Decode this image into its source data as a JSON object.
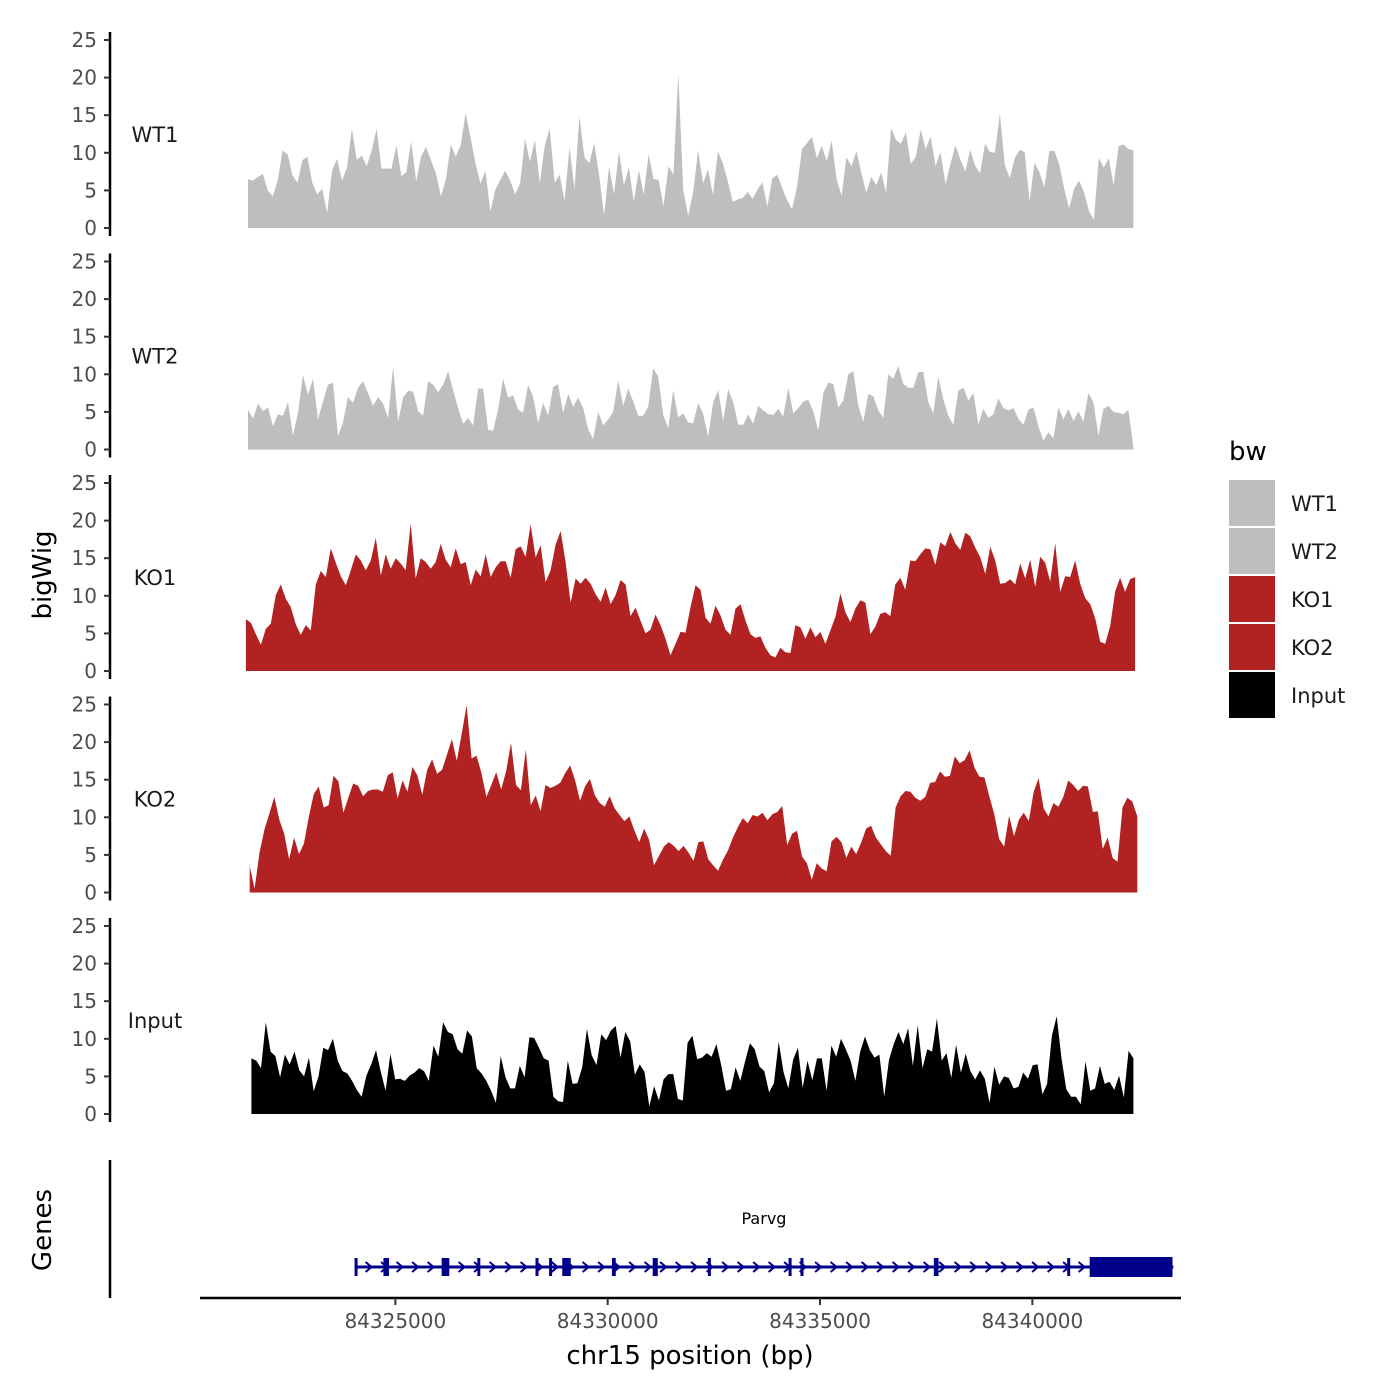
{
  "chart_data": {
    "type": "area",
    "ylabel": "bigWig",
    "xlabel": "chr15 position (bp)",
    "y_ticks": [
      "0",
      "5",
      "10",
      "15",
      "20",
      "25"
    ],
    "ylim": [
      0,
      25
    ],
    "xlim": [
      84320400,
      84343500
    ],
    "x_ticks": [
      {
        "value": 84325000,
        "label": "84325000"
      },
      {
        "value": 84330000,
        "label": "84330000"
      },
      {
        "value": 84335000,
        "label": "84335000"
      },
      {
        "value": 84340000,
        "label": "84340000"
      }
    ],
    "legend": {
      "title": "bw",
      "placement": "right"
    },
    "series": [
      {
        "name": "WT1",
        "color": "#bebebe",
        "x_start": 84321530,
        "x_end": 84342380,
        "values": [
          6.5,
          6.3,
          6.8,
          7.2,
          5,
          4.2,
          6.3,
          10.3,
          9.8,
          7,
          6,
          9,
          9.5,
          6,
          4.5,
          5.2,
          2,
          7.6,
          9.2,
          6.3,
          8,
          13.2,
          9.1,
          9.6,
          8.2,
          10.3,
          13.2,
          7.9,
          7.9,
          7.9,
          11,
          6.9,
          7.4,
          11.5,
          6.2,
          9.5,
          10.8,
          9,
          7.2,
          4.2,
          6.5,
          11.1,
          9.5,
          11,
          15.3,
          12,
          8.6,
          5.9,
          7.6,
          2.2,
          5.1,
          6.4,
          7.6,
          6.3,
          4.5,
          5.9,
          11.9,
          8.8,
          11.7,
          5.9,
          11,
          13.2,
          6,
          7.1,
          3.6,
          10.7,
          5.2,
          14.9,
          9.4,
          8.6,
          11.3,
          6.9,
          1.7,
          8.2,
          4.5,
          10.2,
          5.7,
          8.1,
          3.5,
          7.7,
          4.5,
          9.8,
          6.5,
          6.4,
          2.9,
          8.2,
          7.1,
          20.5,
          5,
          1.6,
          4.8,
          10.3,
          5.9,
          7.8,
          4.4,
          10.2,
          8.6,
          6.2,
          3.5,
          3.8,
          4,
          4.8,
          3.9,
          5.1,
          6.1,
          2.8,
          6.6,
          7.1,
          5.3,
          3.7,
          2.5,
          5.5,
          10.5,
          11.3,
          12.1,
          9.3,
          10.9,
          8.9,
          11.6,
          6.5,
          4.3,
          9.4,
          8.2,
          10.2,
          7.3,
          4.7,
          6.8,
          5.7,
          7.4,
          4.7,
          13.3,
          11.7,
          11.2,
          12.7,
          8.5,
          9.5,
          13.1,
          10.5,
          12.2,
          8.2,
          10.1,
          5.8,
          8.5,
          11,
          9.1,
          7.5,
          10.4,
          8.3,
          7.3,
          11.2,
          10.1,
          10,
          15.2,
          8.4,
          6.6,
          9.3,
          10.4,
          10.1,
          3.5,
          8.7,
          7.4,
          5.4,
          10.2,
          10.3,
          8.5,
          5.2,
          2.6,
          5.2,
          6.3,
          4.8,
          2.3,
          1.1,
          9.3,
          8,
          9.3,
          5.7,
          10.9,
          11.1,
          10.5,
          10.3
        ]
      },
      {
        "name": "WT2",
        "color": "#bebebe",
        "x_start": 84321530,
        "x_end": 84342380,
        "values": [
          5.3,
          4.1,
          6.1,
          5.1,
          5.6,
          3.1,
          4.7,
          4.5,
          6.3,
          1.8,
          4.9,
          9.9,
          7.3,
          9.4,
          4,
          6.4,
          8.6,
          8.9,
          1.8,
          3.6,
          7,
          6.2,
          8.2,
          9.1,
          7.5,
          5.8,
          7,
          6.1,
          4.2,
          11,
          3.7,
          6.9,
          7.8,
          7.7,
          5.1,
          4.5,
          9.1,
          8.6,
          7.6,
          8.6,
          10.4,
          7.9,
          5.5,
          3.4,
          4.2,
          3.2,
          8.1,
          8.1,
          2.6,
          2.5,
          5.3,
          9.4,
          6.9,
          7.2,
          5.3,
          4.9,
          8.6,
          7,
          3.5,
          6.2,
          4.5,
          8.3,
          8.7,
          4.9,
          7.4,
          5.7,
          6.9,
          5.5,
          2.7,
          1.4,
          5,
          3.2,
          4,
          5,
          9.2,
          5.8,
          8.1,
          6.4,
          4.5,
          4.5,
          5.7,
          10.8,
          9.7,
          4.6,
          2.8,
          7.9,
          4.3,
          4.8,
          3.6,
          3.5,
          6.2,
          4.7,
          1.7,
          6.3,
          7.9,
          3.8,
          8,
          6.3,
          3.3,
          3.3,
          4.7,
          3.4,
          5.8,
          5.2,
          4.7,
          4.6,
          5.4,
          4.4,
          8.2,
          4.8,
          5.5,
          6.4,
          6.6,
          5.1,
          2.5,
          7.5,
          8.9,
          8.7,
          5.6,
          6.5,
          10,
          10.4,
          5.8,
          3.7,
          7.4,
          7.1,
          5.2,
          4.2,
          10,
          9.4,
          11.1,
          8.7,
          8.2,
          8.2,
          10.3,
          10.3,
          6.3,
          4.8,
          9.7,
          6.7,
          4.5,
          3.3,
          7.8,
          8.2,
          6.5,
          7.5,
          3.3,
          5.4,
          4.2,
          4.7,
          6.8,
          5.5,
          5.2,
          5.5,
          4.1,
          3.3,
          5.3,
          5.6,
          3.1,
          1.2,
          2.3,
          1.5,
          5.6,
          4,
          5.4,
          3.8,
          5.1,
          3.7,
          7.5,
          6.3,
          1.8,
          5.4,
          5.8,
          5,
          4.9,
          4.7,
          5.3,
          0.3
        ]
      },
      {
        "name": "KO1",
        "color": "#b22222",
        "x_start": 84321480,
        "x_end": 84342420,
        "values": [
          6.9,
          6.4,
          4.9,
          3.5,
          5.6,
          6.3,
          10.1,
          11.5,
          9.6,
          8.5,
          6.2,
          4.8,
          6.1,
          5.4,
          11.5,
          13.3,
          12.5,
          16.3,
          14.4,
          12.6,
          11.4,
          13.4,
          15.5,
          14.7,
          13.4,
          14.7,
          17.7,
          12.7,
          15.5,
          13.6,
          15,
          14.3,
          13.4,
          19.6,
          12.3,
          15,
          14.5,
          13.6,
          14.5,
          16.9,
          14.8,
          13.8,
          16.3,
          14.2,
          14.5,
          11.4,
          13.5,
          12.6,
          15.5,
          12.5,
          13.8,
          14.6,
          14.6,
          12.4,
          16.2,
          16.6,
          15.2,
          19.5,
          15.1,
          16.7,
          11.8,
          13.4,
          16.8,
          18.6,
          14.5,
          9.1,
          12.3,
          11.6,
          12.4,
          11.6,
          10.2,
          9.2,
          11.1,
          8.9,
          10.1,
          12.1,
          11.5,
          7.3,
          8.4,
          6.7,
          5,
          5.5,
          7.5,
          6.1,
          4.3,
          2.1,
          3.6,
          5.2,
          5.1,
          8.5,
          11.4,
          10.8,
          7.1,
          6.3,
          8.7,
          7.4,
          5.5,
          4.8,
          8.3,
          8.9,
          6.7,
          4.9,
          4.4,
          4.6,
          3.1,
          2.1,
          1.8,
          3.1,
          2.5,
          2.4,
          6.1,
          5.8,
          4.3,
          5.8,
          4.5,
          5.2,
          3.6,
          5.4,
          7.2,
          10.3,
          7.8,
          6.5,
          8.3,
          9.4,
          9.1,
          4.9,
          5.9,
          7.6,
          7.8,
          7.3,
          11.5,
          12.4,
          10.8,
          14.7,
          14.6,
          15.5,
          16.3,
          16.2,
          14.1,
          17.1,
          16.6,
          18.5,
          17,
          16.1,
          18.4,
          17.9,
          16.4,
          15.1,
          12.9,
          16.5,
          14.7,
          11.6,
          11.7,
          12.2,
          11.5,
          14.3,
          12.3,
          14.8,
          11.2,
          15.2,
          14.4,
          11.9,
          17,
          10.5,
          12.6,
          12.5,
          14.7,
          11.6,
          9.7,
          8.9,
          7,
          3.9,
          3.6,
          6,
          10.6,
          12.4,
          10.5,
          12.2,
          12.5
        ]
      },
      {
        "name": "KO2",
        "color": "#b22222",
        "x_start": 84321570,
        "x_end": 84342470,
        "values": [
          3.5,
          0.5,
          5.3,
          8.4,
          10.5,
          12.7,
          9.7,
          7.8,
          4.4,
          7.3,
          5.1,
          6.5,
          10.1,
          13.1,
          14.1,
          11.3,
          11.6,
          15.5,
          14.8,
          10.6,
          12.6,
          14.5,
          14.2,
          12.8,
          13.5,
          13.7,
          13.7,
          13.4,
          15.6,
          16,
          12.5,
          14.9,
          13.4,
          16.7,
          15.6,
          13,
          16.3,
          17.7,
          15.8,
          16.3,
          18.3,
          20.4,
          17.5,
          21.1,
          24.9,
          17.8,
          18.2,
          15.9,
          12.7,
          14.3,
          16,
          13.7,
          16.1,
          19.9,
          14.3,
          13.6,
          19,
          11.6,
          12.9,
          10.8,
          14.3,
          13.9,
          14.2,
          14.6,
          15.9,
          16.9,
          14.9,
          12.2,
          14.1,
          15.1,
          12.9,
          11.9,
          11.4,
          12.8,
          11.2,
          10.3,
          9.5,
          10.1,
          8.3,
          6.7,
          8.5,
          7,
          3.6,
          4.9,
          6.1,
          6.7,
          6.2,
          5.5,
          6.2,
          5.3,
          4.2,
          6.7,
          6.8,
          4.4,
          3.6,
          2.9,
          4.4,
          5.6,
          7.3,
          8.7,
          9.9,
          9.2,
          10.3,
          10.1,
          10.6,
          9.6,
          10.4,
          10.7,
          11.5,
          6.3,
          7.8,
          8.2,
          4.8,
          3.9,
          1.7,
          3.9,
          3.2,
          2.8,
          6.8,
          7.4,
          6.7,
          4.6,
          6.1,
          5.1,
          6.6,
          8.5,
          8.9,
          7.3,
          6.4,
          5.5,
          4.9,
          11.3,
          12.8,
          13.5,
          13.4,
          12.6,
          12.2,
          12.7,
          14.6,
          14.7,
          16.1,
          15.4,
          15.5,
          18.1,
          17.2,
          17.6,
          18.9,
          16.6,
          15.4,
          15.3,
          12.8,
          10.4,
          7.1,
          6.1,
          10.2,
          7.5,
          9.7,
          10.6,
          9.5,
          13.4,
          15.2,
          11.2,
          10.1,
          11.9,
          11.4,
          12.7,
          14.9,
          14.3,
          13.5,
          14.2,
          14.1,
          10.7,
          10.8,
          5.8,
          7.3,
          4.6,
          4.1,
          11.3,
          12.6,
          12.1,
          10.1
        ]
      },
      {
        "name": "Input",
        "color": "#000000",
        "x_start": 84321610,
        "x_end": 84342380,
        "values": [
          7.4,
          7.1,
          6.1,
          12.2,
          8.3,
          7.7,
          4.9,
          7.9,
          6.6,
          8.3,
          5.8,
          5,
          7.5,
          3,
          5,
          8.8,
          8.5,
          10,
          7.1,
          5.7,
          5.4,
          4.4,
          3.2,
          2.3,
          5.1,
          6.6,
          8.5,
          5.6,
          3.1,
          8,
          4.6,
          4.7,
          4.4,
          5.1,
          5.5,
          6.1,
          5.7,
          4.4,
          9.1,
          7.6,
          12.2,
          10.9,
          10.6,
          8.6,
          8,
          11.1,
          10.3,
          6.1,
          5.4,
          4.4,
          3.1,
          1.5,
          7.7,
          4.9,
          3.4,
          3.4,
          6.4,
          4.9,
          10.2,
          10.1,
          8.8,
          7.4,
          7.1,
          2.3,
          1.7,
          1.6,
          7.1,
          4,
          4.1,
          6.2,
          11.3,
          7.8,
          6.5,
          10.6,
          9.8,
          11.1,
          11.7,
          7.5,
          10.9,
          9.7,
          5.2,
          6.6,
          5.6,
          1,
          3.7,
          1.8,
          4.6,
          5.3,
          5.3,
          2,
          1.8,
          9.5,
          10.4,
          7.3,
          7.5,
          8.1,
          7.6,
          9.3,
          6.5,
          3.1,
          3.3,
          6.2,
          4.4,
          7,
          9.4,
          8.6,
          6.3,
          5.7,
          2.9,
          4.1,
          9.6,
          5.6,
          3.4,
          7.2,
          8.8,
          3.5,
          7.1,
          4.5,
          7.4,
          7.4,
          3.1,
          9.1,
          7.6,
          10,
          8.6,
          7.1,
          4.4,
          8.3,
          10.3,
          8.5,
          7.5,
          7.9,
          2.3,
          7.2,
          9.3,
          10.9,
          9.3,
          11.4,
          6.4,
          11.8,
          6.1,
          8.6,
          8.3,
          12.7,
          7.1,
          8.1,
          4.8,
          9.2,
          5.5,
          8,
          5.7,
          4.6,
          5.8,
          4.7,
          1.5,
          6.3,
          3.9,
          5,
          4.8,
          3.4,
          3.6,
          5.5,
          4.7,
          6.5,
          6.6,
          2.6,
          4,
          10.4,
          13,
          7.4,
          3.3,
          2.3,
          2.3,
          1.3,
          7,
          3.1,
          3.4,
          6.4,
          4,
          4.3,
          3.2,
          5.1,
          2.2,
          8.4,
          7.4
        ]
      }
    ],
    "genes_panel": {
      "ylabel": "Genes",
      "gene": {
        "name": "Parvg",
        "start": 84324040,
        "end": 84343320,
        "strand": "+"
      },
      "exons": [
        {
          "start": 84324040,
          "end": 84324110
        },
        {
          "start": 84324720,
          "end": 84324850
        },
        {
          "start": 84326090,
          "end": 84326270
        },
        {
          "start": 84326930,
          "end": 84326990
        },
        {
          "start": 84328300,
          "end": 84328360
        },
        {
          "start": 84328620,
          "end": 84328660
        },
        {
          "start": 84328930,
          "end": 84329130
        },
        {
          "start": 84330100,
          "end": 84330190
        },
        {
          "start": 84331060,
          "end": 84331180
        },
        {
          "start": 84332360,
          "end": 84332390
        },
        {
          "start": 84334260,
          "end": 84334300
        },
        {
          "start": 84334540,
          "end": 84334580
        },
        {
          "start": 84337680,
          "end": 84337790
        },
        {
          "start": 84340820,
          "end": 84340880
        },
        {
          "start": 84341350,
          "end": 84343300
        }
      ],
      "color": "#00008b"
    }
  }
}
